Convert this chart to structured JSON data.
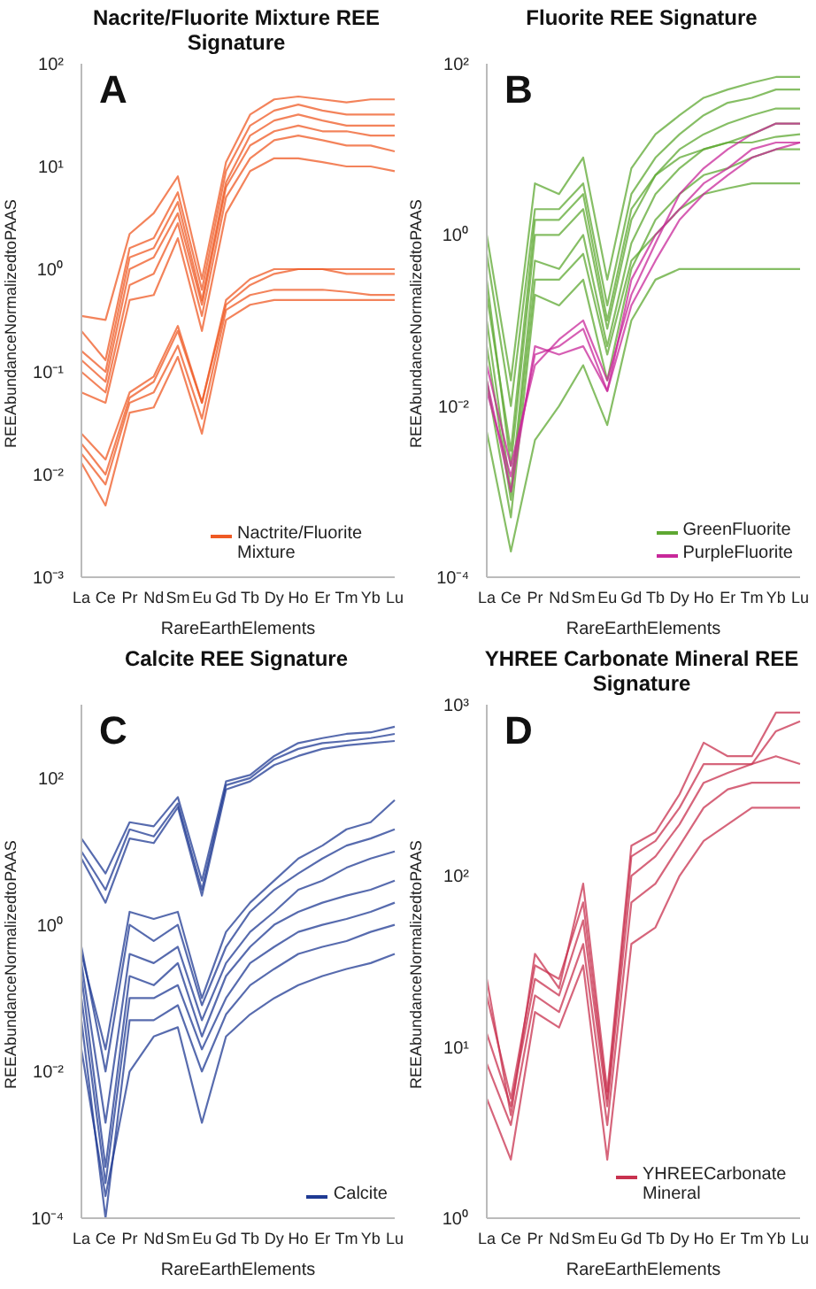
{
  "chart_data": [
    {
      "type": "line",
      "title": "Nacrite/Fluorite Mixture REE Signature",
      "xlabel": "RareEarthElements",
      "ylabel": "REEAbundanceNormalizedtoPAAS",
      "annotations": [
        "A"
      ],
      "log": "y",
      "legend": "bottom right",
      "categories": [
        "La",
        "Ce",
        "Pr",
        "Nd",
        "Sm",
        "Eu",
        "Gd",
        "Tb",
        "Dy",
        "Ho",
        "Er",
        "Tm",
        "Yb",
        "Lu"
      ],
      "ylim": [
        0.001,
        100
      ],
      "yticks": [
        {
          "value": 0.001,
          "label": "10⁻³"
        },
        {
          "value": 0.01,
          "label": "10⁻²"
        },
        {
          "value": 0.1,
          "label": "10⁻¹"
        },
        {
          "value": 1,
          "label": "10⁰"
        },
        {
          "value": 10,
          "label": "10¹"
        },
        {
          "value": 100,
          "label": "10²"
        }
      ],
      "series": [
        {
          "name": "Nactrite/Fluorite Mixture",
          "color": "#ef5a24",
          "values": [
            0.25,
            0.13,
            1.6,
            2,
            5.6,
            0.63,
            9,
            25,
            35,
            40,
            35,
            32,
            32,
            32
          ]
        },
        {
          "color": "#ef5a24",
          "values": [
            0.013,
            0.005,
            0.04,
            0.045,
            0.14,
            0.025,
            0.32,
            0.45,
            0.5,
            0.5,
            0.5,
            0.5,
            0.5,
            0.5
          ]
        },
        {
          "color": "#ef5a24",
          "values": [
            0.016,
            0.008,
            0.05,
            0.063,
            0.18,
            0.035,
            0.4,
            0.56,
            0.63,
            0.63,
            0.63,
            0.6,
            0.56,
            0.56
          ]
        },
        {
          "color": "#ef5a24",
          "values": [
            0.02,
            0.01,
            0.056,
            0.08,
            0.25,
            0.05,
            0.45,
            0.7,
            0.9,
            1,
            1,
            0.9,
            0.9,
            0.9
          ]
        },
        {
          "color": "#ef5a24",
          "values": [
            0.025,
            0.014,
            0.063,
            0.09,
            0.28,
            0.05,
            0.5,
            0.8,
            1,
            1,
            1,
            1,
            1,
            1
          ]
        },
        {
          "color": "#ef5a24",
          "values": [
            0.063,
            0.05,
            0.5,
            0.56,
            2,
            0.25,
            3.5,
            9,
            12,
            12,
            11,
            10,
            10,
            9
          ]
        },
        {
          "color": "#ef5a24",
          "values": [
            0.1,
            0.063,
            0.7,
            0.9,
            2.8,
            0.35,
            5,
            12,
            18,
            20,
            18,
            16,
            16,
            14
          ]
        },
        {
          "color": "#ef5a24",
          "values": [
            0.13,
            0.08,
            1,
            1.3,
            3.5,
            0.45,
            6.3,
            16,
            22,
            25,
            22,
            22,
            20,
            20
          ]
        },
        {
          "color": "#ef5a24",
          "values": [
            0.16,
            0.1,
            1.3,
            1.6,
            4.5,
            0.5,
            7,
            20,
            28,
            32,
            28,
            25,
            25,
            25
          ]
        },
        {
          "color": "#ef5a24",
          "values": [
            0.35,
            0.32,
            2.2,
            3.5,
            8,
            0.8,
            11,
            32,
            45,
            48,
            45,
            42,
            45,
            45
          ]
        }
      ]
    },
    {
      "type": "line",
      "title": "Fluorite REE Signature",
      "xlabel": "RareEarthElements",
      "ylabel": "REEAbundanceNormalizedtoPAAS",
      "annotations": [
        "B"
      ],
      "log": "y",
      "legend": "bottom right",
      "categories": [
        "La",
        "Ce",
        "Pr",
        "Nd",
        "Sm",
        "Eu",
        "Gd",
        "Tb",
        "Dy",
        "Ho",
        "Er",
        "Tm",
        "Yb",
        "Lu"
      ],
      "ylim": [
        0.0001,
        100
      ],
      "yticks": [
        {
          "value": 0.0001,
          "label": "10⁻⁴"
        },
        {
          "value": 0.01,
          "label": "10⁻²"
        },
        {
          "value": 1,
          "label": "10⁰"
        },
        {
          "value": 100,
          "label": "10²"
        }
      ],
      "series": [
        {
          "name": "GreenFluorite",
          "color": "#5ea832",
          "values": [
            1,
            0.02,
            4,
            3,
            8,
            0.3,
            6,
            15,
            25,
            40,
            50,
            60,
            70,
            70
          ]
        },
        {
          "color": "#5ea832",
          "values": [
            0.005,
            0.0002,
            0.004,
            0.01,
            0.03,
            0.006,
            0.1,
            0.3,
            0.4,
            0.4,
            0.4,
            0.4,
            0.4,
            0.4
          ]
        },
        {
          "color": "#5ea832",
          "values": [
            0.02,
            0.0005,
            0.2,
            0.15,
            0.3,
            0.02,
            0.4,
            1.5,
            3,
            5,
            6,
            8,
            10,
            10
          ]
        },
        {
          "color": "#5ea832",
          "values": [
            0.1,
            0.001,
            0.5,
            0.4,
            1,
            0.05,
            0.8,
            3,
            6,
            10,
            12,
            15,
            20,
            20
          ]
        },
        {
          "color": "#5ea832",
          "values": [
            0.3,
            0.002,
            1,
            1,
            2,
            0.08,
            1.5,
            5,
            10,
            15,
            20,
            25,
            30,
            30
          ]
        },
        {
          "color": "#5ea832",
          "values": [
            0.6,
            0.01,
            2,
            2,
            4,
            0.15,
            3,
            8,
            15,
            25,
            35,
            40,
            50,
            50
          ]
        },
        {
          "color": "#5ea832",
          "values": [
            0.05,
            0.0008,
            0.3,
            0.3,
            0.6,
            0.04,
            0.5,
            1,
            2,
            3,
            3.5,
            4,
            4,
            4
          ]
        },
        {
          "color": "#5ea832",
          "values": [
            0.2,
            0.003,
            1.5,
            1.5,
            3,
            0.1,
            2,
            5,
            8,
            10,
            12,
            12,
            14,
            15
          ]
        },
        {
          "name": "PurpleFluorite",
          "color": "#c8289a",
          "values": [
            0.02,
            0.001,
            0.05,
            0.04,
            0.05,
            0.015,
            0.3,
            1,
            2,
            4,
            6,
            10,
            12,
            12
          ]
        },
        {
          "color": "#c8289a",
          "values": [
            0.03,
            0.002,
            0.03,
            0.06,
            0.1,
            0.02,
            0.2,
            0.8,
            3,
            6,
            10,
            15,
            20,
            20
          ]
        },
        {
          "color": "#c8289a",
          "values": [
            0.015,
            0.0015,
            0.04,
            0.05,
            0.08,
            0.015,
            0.15,
            0.5,
            1.5,
            3,
            5,
            8,
            10,
            12
          ]
        }
      ]
    },
    {
      "type": "line",
      "title": "Calcite REE Signature",
      "xlabel": "RareEarthElements",
      "ylabel": "REEAbundanceNormalizedtoPAAS",
      "annotations": [
        "C"
      ],
      "log": "y",
      "legend": "bottom right",
      "categories": [
        "La",
        "Ce",
        "Pr",
        "Nd",
        "Sm",
        "Eu",
        "Gd",
        "Tb",
        "Dy",
        "Ho",
        "Er",
        "Tm",
        "Yb",
        "Lu"
      ],
      "ylim": [
        0.0001,
        1000
      ],
      "yticks": [
        {
          "value": 0.0001,
          "label": "10⁻⁴"
        },
        {
          "value": 0.01,
          "label": "10⁻²"
        },
        {
          "value": 1,
          "label": "10⁰"
        },
        {
          "value": 100,
          "label": "10²"
        }
      ],
      "series": [
        {
          "name": "Calcite",
          "color": "#1f3a93",
          "values": [
            0.3,
            0.002,
            0.4,
            0.3,
            0.5,
            0.05,
            0.3,
            0.8,
            1.5,
            3,
            4,
            6,
            8,
            10
          ]
        },
        {
          "color": "#1f3a93",
          "values": [
            10,
            3,
            20,
            16,
            45,
            3,
            80,
            100,
            180,
            250,
            300,
            320,
            350,
            400
          ]
        },
        {
          "color": "#1f3a93",
          "values": [
            15,
            5,
            25,
            22,
            55,
            4,
            90,
            110,
            200,
            300,
            350,
            400,
            420,
            500
          ]
        },
        {
          "color": "#1f3a93",
          "values": [
            8,
            2,
            15,
            13,
            40,
            2.5,
            70,
            90,
            150,
            200,
            250,
            280,
            300,
            320
          ]
        },
        {
          "color": "#1f3a93",
          "values": [
            0.02,
            0.0002,
            0.01,
            0.03,
            0.04,
            0.002,
            0.03,
            0.06,
            0.1,
            0.15,
            0.2,
            0.25,
            0.3,
            0.4
          ]
        },
        {
          "color": "#1f3a93",
          "values": [
            0.05,
            0.0001,
            0.05,
            0.05,
            0.08,
            0.01,
            0.06,
            0.15,
            0.25,
            0.4,
            0.5,
            0.6,
            0.8,
            1
          ]
        },
        {
          "color": "#1f3a93",
          "values": [
            0.1,
            0.0003,
            0.1,
            0.1,
            0.15,
            0.02,
            0.1,
            0.3,
            0.5,
            0.8,
            1,
            1.2,
            1.5,
            2
          ]
        },
        {
          "color": "#1f3a93",
          "values": [
            0.2,
            0.0005,
            0.2,
            0.15,
            0.3,
            0.03,
            0.2,
            0.5,
            1,
            1.5,
            2,
            2.5,
            3,
            4
          ]
        },
        {
          "color": "#1f3a93",
          "values": [
            0.5,
            0.01,
            1,
            0.6,
            1,
            0.08,
            0.5,
            1.5,
            3,
            5,
            8,
            12,
            15,
            20
          ]
        },
        {
          "color": "#1f3a93",
          "values": [
            0.4,
            0.02,
            1.5,
            1.2,
            1.5,
            0.1,
            0.8,
            2,
            4,
            8,
            12,
            20,
            25,
            50
          ]
        }
      ]
    },
    {
      "type": "line",
      "title": "YHREE Carbonate Mineral REE Signature",
      "xlabel": "RareEarthElements",
      "ylabel": "REEAbundanceNormalizedtoPAAS",
      "annotations": [
        "D"
      ],
      "log": "y",
      "legend": "bottom right",
      "categories": [
        "La",
        "Ce",
        "Pr",
        "Nd",
        "Sm",
        "Eu",
        "Gd",
        "Tb",
        "Dy",
        "Ho",
        "Er",
        "Tm",
        "Yb",
        "Lu"
      ],
      "ylim": [
        1,
        1000
      ],
      "yticks": [
        {
          "value": 1,
          "label": "10⁰"
        },
        {
          "value": 10,
          "label": "10¹"
        },
        {
          "value": 100,
          "label": "10²"
        },
        {
          "value": 1000,
          "label": "10³"
        }
      ],
      "series": [
        {
          "name": "YHREECarbonate Mineral",
          "color": "#c8324f",
          "values": [
            5,
            2.2,
            16,
            13,
            30,
            2.2,
            40,
            50,
            100,
            160,
            200,
            250,
            250,
            250
          ]
        },
        {
          "color": "#c8324f",
          "values": [
            8,
            3.5,
            20,
            16,
            40,
            3.5,
            70,
            90,
            150,
            250,
            320,
            350,
            350,
            350
          ]
        },
        {
          "color": "#c8324f",
          "values": [
            12,
            4.5,
            25,
            20,
            55,
            4.5,
            100,
            130,
            200,
            350,
            400,
            450,
            500,
            450
          ]
        },
        {
          "color": "#c8324f",
          "values": [
            20,
            5,
            30,
            25,
            70,
            5,
            130,
            160,
            250,
            450,
            450,
            450,
            700,
            800
          ]
        },
        {
          "color": "#c8324f",
          "values": [
            25,
            4,
            35,
            22,
            90,
            5.5,
            150,
            180,
            300,
            600,
            500,
            500,
            900,
            900
          ]
        }
      ]
    }
  ]
}
